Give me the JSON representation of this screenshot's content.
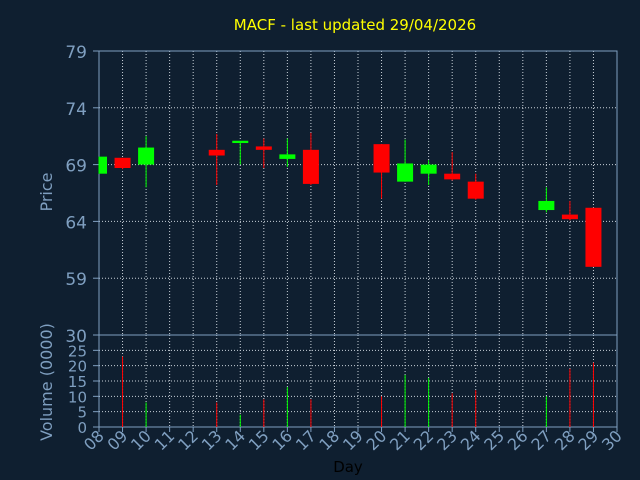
{
  "chart_data": [
    {
      "type": "candlestick",
      "title": "MACF - last updated 29/04/2026",
      "ylabel": "Price",
      "ylim": [
        54,
        79
      ],
      "y_ticks": [
        "79",
        "74",
        "69",
        "64",
        "59"
      ],
      "x_positions": [
        "08",
        "09",
        "10",
        "11",
        "12",
        "13",
        "14",
        "15",
        "16",
        "17",
        "18",
        "19",
        "20",
        "21",
        "22",
        "23",
        "24",
        "25",
        "26",
        "27",
        "28",
        "29",
        "30"
      ],
      "grid": true,
      "candles": [
        {
          "day": "08",
          "open": 68.2,
          "high": 69.7,
          "low": 68.2,
          "close": 69.7
        },
        {
          "day": "09",
          "open": 69.6,
          "high": 69.6,
          "low": 68.6,
          "close": 68.7
        },
        {
          "day": "10",
          "open": 69.0,
          "high": 71.5,
          "low": 67.0,
          "close": 70.5
        },
        {
          "day": "13",
          "open": 70.3,
          "high": 71.7,
          "low": 67.2,
          "close": 69.8
        },
        {
          "day": "14",
          "open": 70.9,
          "high": 71.0,
          "low": 69.0,
          "close": 71.1
        },
        {
          "day": "15",
          "open": 70.6,
          "high": 71.3,
          "low": 68.7,
          "close": 70.3
        },
        {
          "day": "16",
          "open": 69.5,
          "high": 71.3,
          "low": 68.8,
          "close": 69.9
        },
        {
          "day": "17",
          "open": 70.3,
          "high": 71.8,
          "low": 67.2,
          "close": 67.3
        },
        {
          "day": "20",
          "open": 70.8,
          "high": 70.8,
          "low": 66.0,
          "close": 68.3
        },
        {
          "day": "21",
          "open": 67.5,
          "high": 71.2,
          "low": 67.5,
          "close": 69.1
        },
        {
          "day": "22",
          "open": 68.2,
          "high": 69.4,
          "low": 67.2,
          "close": 69.0
        },
        {
          "day": "23",
          "open": 68.2,
          "high": 70.1,
          "low": 67.6,
          "close": 67.7
        },
        {
          "day": "24",
          "open": 67.5,
          "high": 68.2,
          "low": 65.9,
          "close": 66.0
        },
        {
          "day": "27",
          "open": 65.0,
          "high": 67.0,
          "low": 64.8,
          "close": 65.8
        },
        {
          "day": "28",
          "open": 64.6,
          "high": 65.8,
          "low": 64.1,
          "close": 64.2
        },
        {
          "day": "29",
          "open": 65.2,
          "high": 65.2,
          "low": 60.1,
          "close": 60.0
        }
      ],
      "colors": {
        "up": "#00ff00",
        "down": "#ff0000"
      }
    },
    {
      "type": "bar",
      "ylabel": "Volume (0000)",
      "xlabel": "Day",
      "ylim": [
        0,
        30
      ],
      "y_ticks": [
        "30",
        "25",
        "20",
        "15",
        "10",
        "5",
        "0"
      ],
      "x_ticks": [
        "08",
        "09",
        "10",
        "11",
        "12",
        "13",
        "14",
        "15",
        "16",
        "17",
        "18",
        "19",
        "20",
        "21",
        "22",
        "23",
        "24",
        "25",
        "26",
        "27",
        "28",
        "29",
        "30"
      ],
      "grid": true,
      "bars": [
        {
          "day": "09",
          "value": 23,
          "color": "#ff0000"
        },
        {
          "day": "10",
          "value": 8,
          "color": "#00ff00"
        },
        {
          "day": "13",
          "value": 8,
          "color": "#ff0000"
        },
        {
          "day": "14",
          "value": 4,
          "color": "#00ff00"
        },
        {
          "day": "15",
          "value": 9,
          "color": "#ff0000"
        },
        {
          "day": "16",
          "value": 13,
          "color": "#00ff00"
        },
        {
          "day": "17",
          "value": 9,
          "color": "#ff0000"
        },
        {
          "day": "20",
          "value": 10,
          "color": "#ff0000"
        },
        {
          "day": "21",
          "value": 17,
          "color": "#00ff00"
        },
        {
          "day": "22",
          "value": 16,
          "color": "#00ff00"
        },
        {
          "day": "23",
          "value": 11,
          "color": "#ff0000"
        },
        {
          "day": "24",
          "value": 12,
          "color": "#ff0000"
        },
        {
          "day": "27",
          "value": 10,
          "color": "#00ff00"
        },
        {
          "day": "28",
          "value": 19,
          "color": "#ff0000"
        },
        {
          "day": "29",
          "value": 21,
          "color": "#ff0000"
        }
      ]
    }
  ],
  "style": {
    "background": "#0f1f30",
    "plot_background": "#0f1f30",
    "axis_color": "#7f9fc0",
    "title_color": "#ffff00",
    "tick_color": "#7f9fc0",
    "xlabel_color": "#000000"
  }
}
